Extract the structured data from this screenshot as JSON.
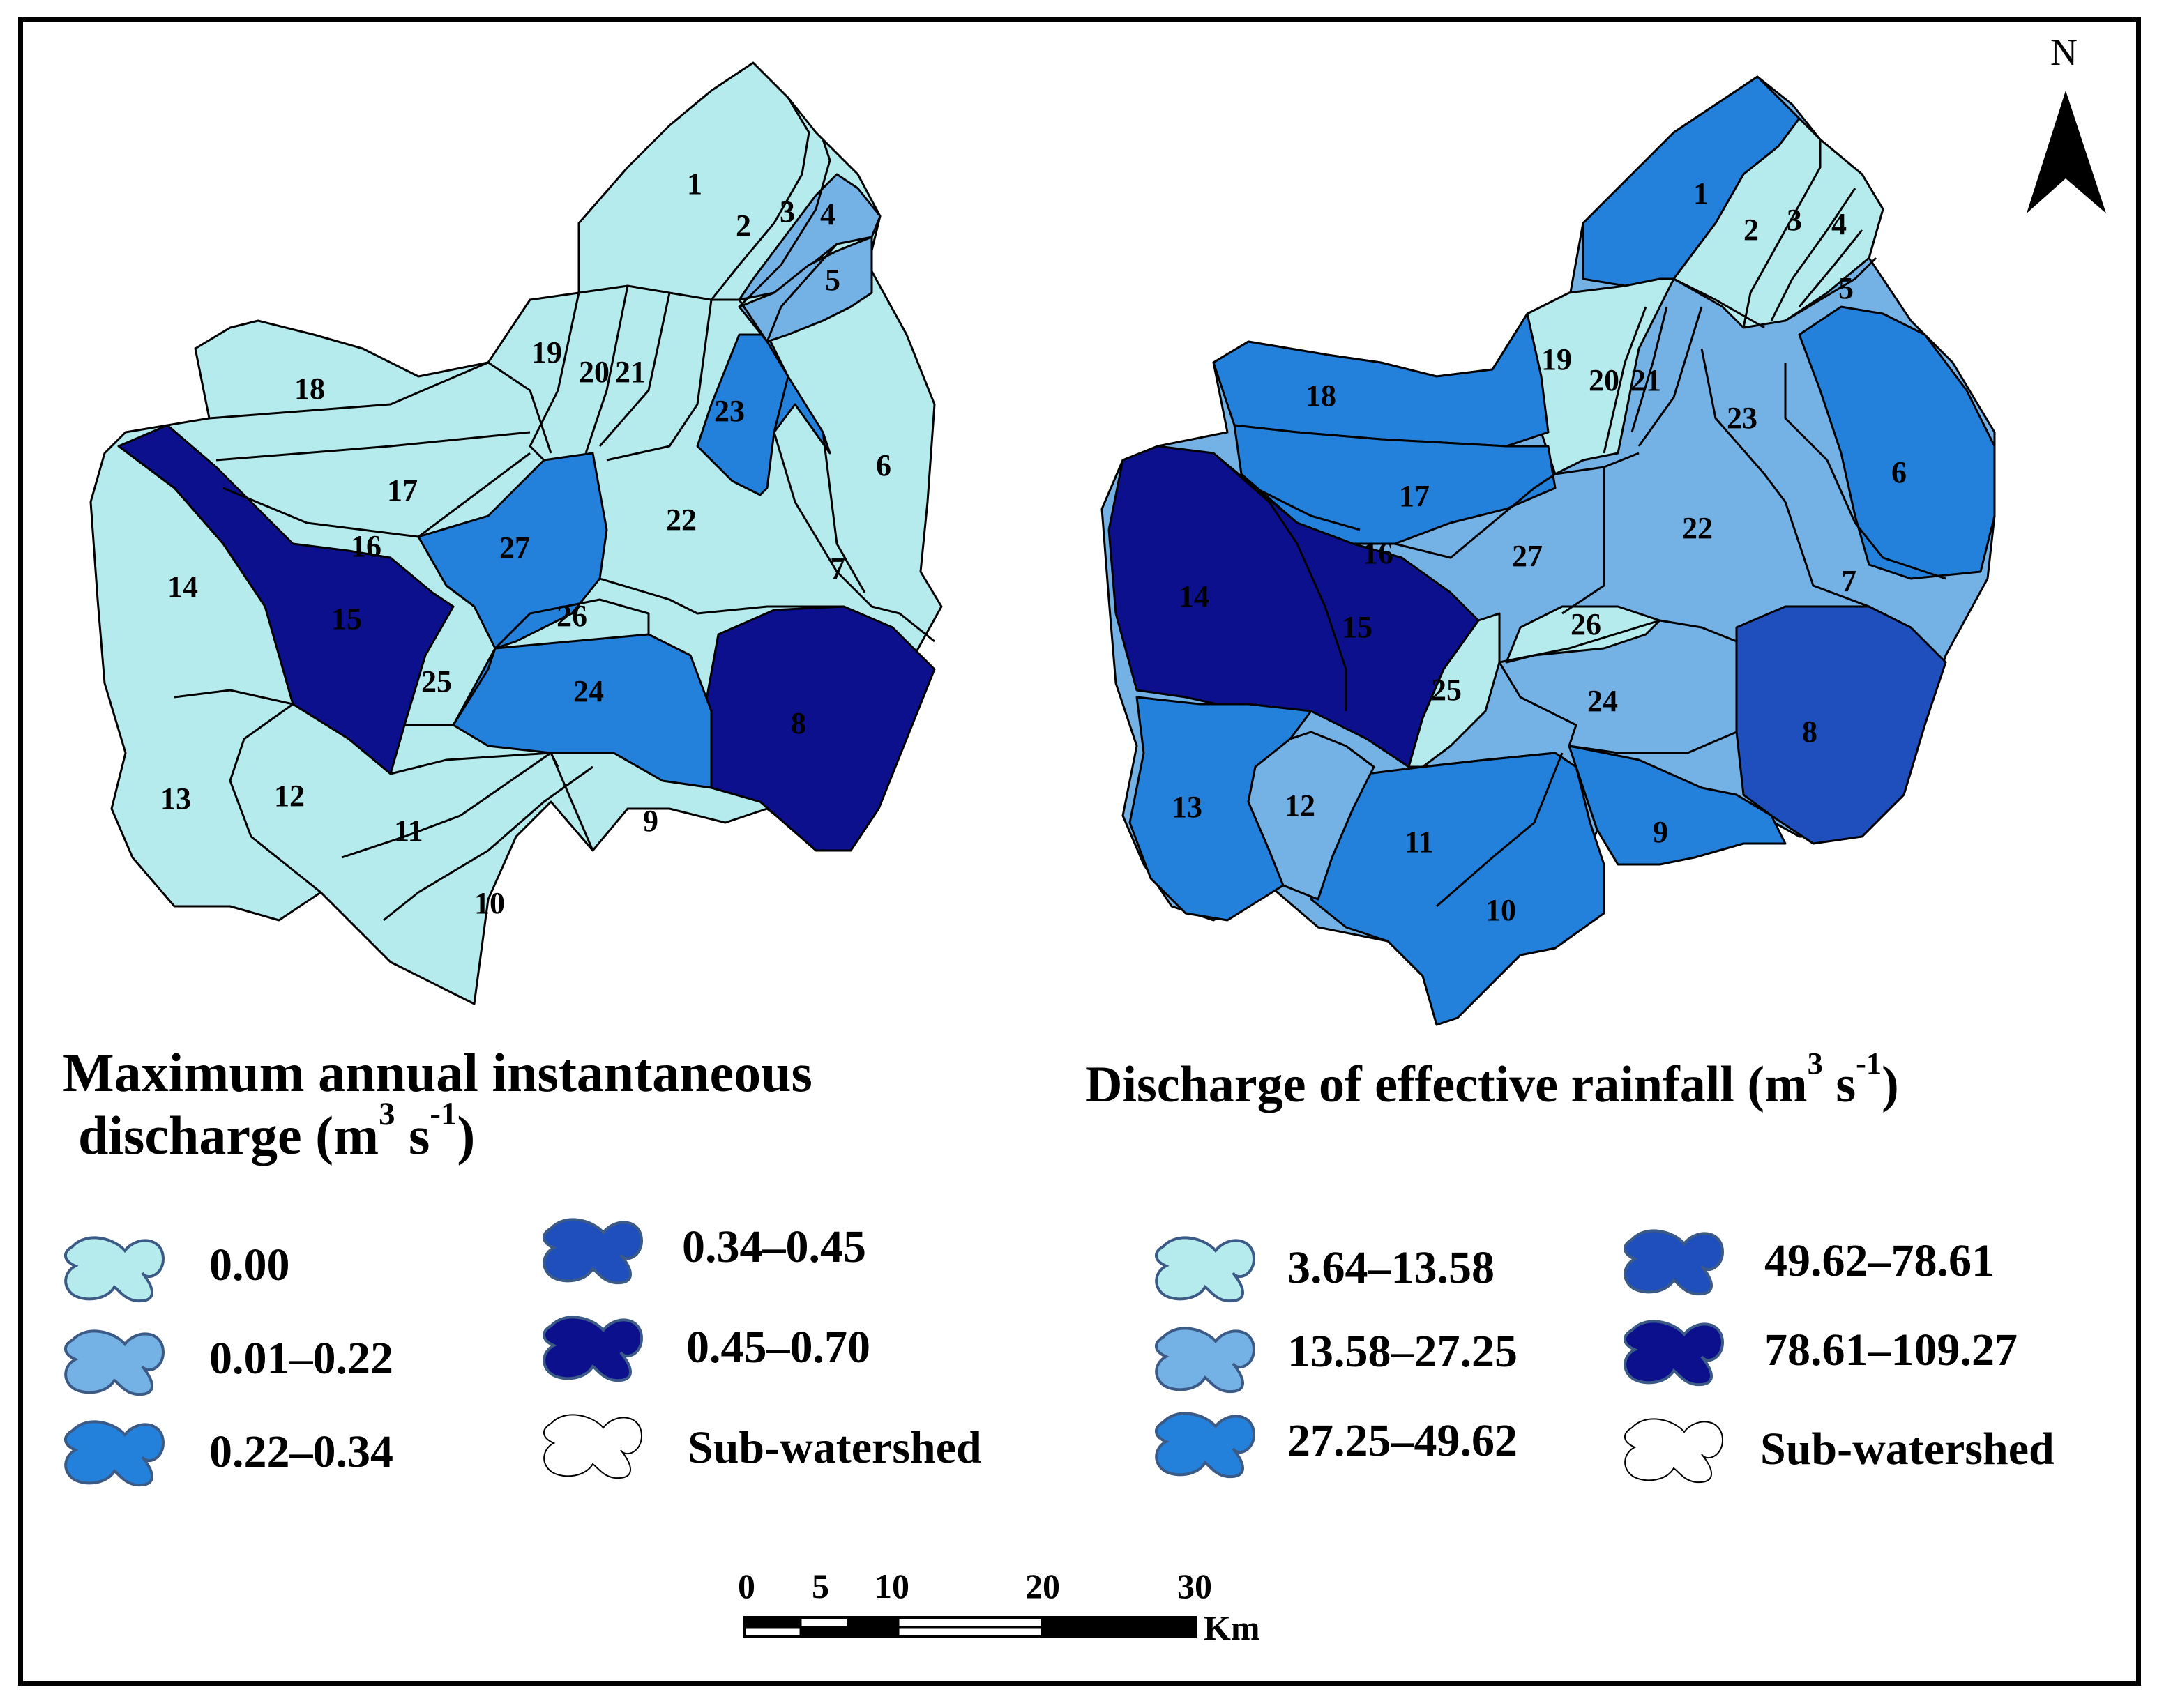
{
  "colors": {
    "c1": "#b6ebee",
    "c2": "#74b1e4",
    "c3": "#2381dc",
    "c4": "#1f4ebd",
    "c5": "#0c108c",
    "outline": "#000000"
  },
  "map_left": {
    "title_line1": "Maximum annual instantaneous",
    "title_line2": "discharge  (m",
    "title_sup1": "3",
    "title_mid": " s",
    "title_sup2": "-1",
    "title_end": ")",
    "legend": [
      {
        "label": "0.00",
        "color": "#b6ebee"
      },
      {
        "label": "0.01–0.22",
        "color": "#74b1e4"
      },
      {
        "label": "0.22–0.34",
        "color": "#2381dc"
      },
      {
        "label": "0.34–0.45",
        "color": "#1f4ebd"
      },
      {
        "label": "0.45–0.70",
        "color": "#0c108c"
      },
      {
        "label": "Sub-watershed",
        "color": "#ffffff"
      }
    ],
    "zone_labels": [
      "1",
      "2",
      "3",
      "4",
      "5",
      "6",
      "7",
      "8",
      "9",
      "10",
      "11",
      "12",
      "13",
      "14",
      "15",
      "16",
      "17",
      "18",
      "19",
      "20",
      "21",
      "22",
      "23",
      "24",
      "25",
      "26",
      "27"
    ]
  },
  "map_right": {
    "title": "Discharge of effective rainfall (m",
    "title_sup1": "3",
    "title_mid": " s",
    "title_sup2": "-1",
    "title_end": ")",
    "legend": [
      {
        "label": "3.64–13.58",
        "color": "#b6ebee"
      },
      {
        "label": "13.58–27.25",
        "color": "#74b1e4"
      },
      {
        "label": "27.25–49.62",
        "color": "#2381dc"
      },
      {
        "label": "49.62–78.61",
        "color": "#1f4ebd"
      },
      {
        "label": "78.61–109.27",
        "color": "#0c108c"
      },
      {
        "label": "Sub-watershed",
        "color": "#ffffff"
      }
    ],
    "zone_labels": [
      "1",
      "2",
      "3",
      "4",
      "5",
      "6",
      "7",
      "8",
      "9",
      "10",
      "11",
      "12",
      "13",
      "14",
      "15",
      "16",
      "17",
      "18",
      "19",
      "20",
      "21",
      "22",
      "23",
      "24",
      "25",
      "26",
      "27"
    ]
  },
  "north_arrow": {
    "label": "N"
  },
  "scale_bar": {
    "ticks": [
      "0",
      "5",
      "10",
      "20",
      "30"
    ],
    "unit": "Km"
  }
}
